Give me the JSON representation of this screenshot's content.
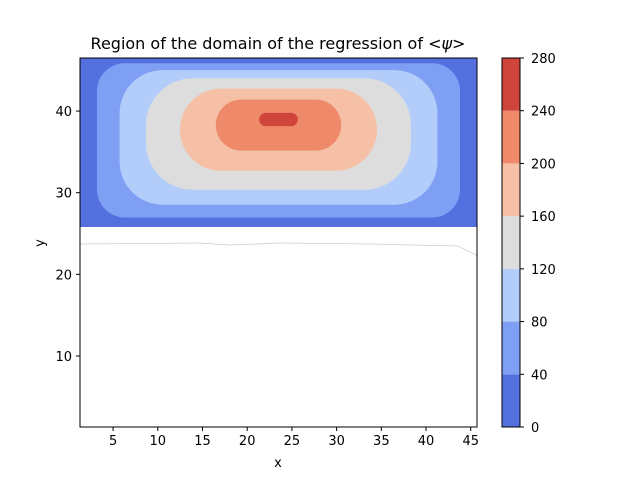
{
  "chart_data": {
    "type": "contourf",
    "title": "Region of the domain of the regression of",
    "title_math": "<ψ>",
    "xlabel": "x",
    "ylabel": "y",
    "xlim": [
      1.3,
      45.7
    ],
    "ylim": [
      1.3,
      46.5
    ],
    "xticks": [
      5,
      10,
      15,
      20,
      25,
      30,
      35,
      40,
      45
    ],
    "yticks": [
      10,
      20,
      30,
      40
    ],
    "filled_region": {
      "x": [
        1.3,
        45.7
      ],
      "y": [
        25.8,
        46.5
      ]
    },
    "maximum_center": {
      "x": 23.5,
      "y": 39.2
    },
    "levels": [
      0,
      40,
      80,
      120,
      160,
      200,
      240,
      280
    ],
    "colorbar": {
      "ticks": [
        0,
        40,
        80,
        120,
        160,
        200,
        240,
        280
      ],
      "colors": [
        "#5470de",
        "#7f9ff4",
        "#b3cdfb",
        "#dddddd",
        "#f5c0a6",
        "#ee8969",
        "#cf453c"
      ]
    },
    "colormap": "coolwarm",
    "grid": false
  }
}
